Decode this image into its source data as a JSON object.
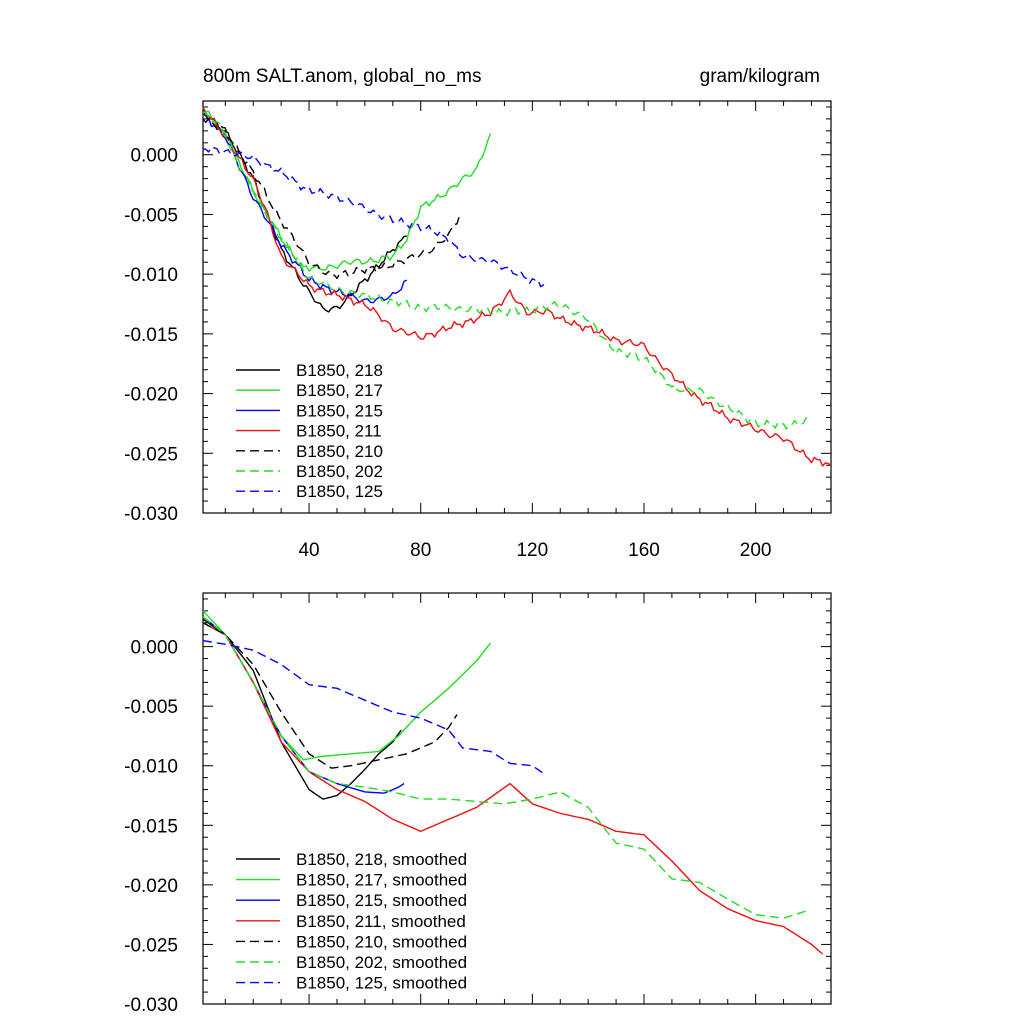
{
  "header": {
    "title_left": "800m SALT.anom, global_no_ms",
    "title_right": "gram/kilogram"
  },
  "chart_data": [
    {
      "type": "line",
      "title": "800m SALT.anom, global_no_ms",
      "units": "gram/kilogram",
      "xlim": [
        2,
        227
      ],
      "ylim": [
        -0.03,
        0.0045
      ],
      "xticks": [
        40,
        80,
        120,
        160,
        200
      ],
      "xtick_labels": [
        "40",
        "80",
        "120",
        "160",
        "200"
      ],
      "yticks": [
        0.0,
        -0.005,
        -0.01,
        -0.015,
        -0.02,
        -0.025,
        -0.03
      ],
      "ytick_labels": [
        "0.000",
        "-0.005",
        "-0.010",
        "-0.015",
        "-0.020",
        "-0.025",
        "-0.030"
      ],
      "legend_position": "lower-left",
      "series": [
        {
          "name": "B1850, 218",
          "color": "#000000",
          "dash": "solid",
          "noise": 0.0004,
          "points": [
            [
              2,
              0.0035
            ],
            [
              10,
              0.002
            ],
            [
              20,
              -0.002
            ],
            [
              30,
              -0.008
            ],
            [
              40,
              -0.0115
            ],
            [
              45,
              -0.013
            ],
            [
              50,
              -0.0128
            ],
            [
              55,
              -0.0118
            ],
            [
              60,
              -0.0105
            ],
            [
              65,
              -0.0092
            ],
            [
              70,
              -0.008
            ],
            [
              75,
              -0.0068
            ]
          ]
        },
        {
          "name": "B1850, 217",
          "color": "#22dd22",
          "dash": "solid",
          "noise": 0.0004,
          "points": [
            [
              2,
              0.004
            ],
            [
              10,
              0.0015
            ],
            [
              20,
              -0.003
            ],
            [
              30,
              -0.007
            ],
            [
              38,
              -0.0095
            ],
            [
              45,
              -0.0095
            ],
            [
              55,
              -0.009
            ],
            [
              65,
              -0.0088
            ],
            [
              70,
              -0.0085
            ],
            [
              75,
              -0.007
            ],
            [
              80,
              -0.0045
            ],
            [
              90,
              -0.003
            ],
            [
              100,
              -0.0012
            ],
            [
              105,
              0.0018
            ]
          ]
        },
        {
          "name": "B1850, 215",
          "color": "#0000ff",
          "dash": "solid",
          "noise": 0.0004,
          "points": [
            [
              2,
              0.0035
            ],
            [
              10,
              0.0015
            ],
            [
              20,
              -0.0035
            ],
            [
              30,
              -0.0075
            ],
            [
              40,
              -0.0105
            ],
            [
              50,
              -0.0115
            ],
            [
              60,
              -0.0122
            ],
            [
              65,
              -0.0122
            ],
            [
              70,
              -0.0118
            ],
            [
              75,
              -0.0105
            ]
          ]
        },
        {
          "name": "B1850, 211",
          "color": "#ee1111",
          "dash": "solid",
          "noise": 0.0004,
          "points": [
            [
              2,
              0.004
            ],
            [
              10,
              0.0015
            ],
            [
              20,
              -0.002
            ],
            [
              25,
              -0.005
            ],
            [
              30,
              -0.0085
            ],
            [
              40,
              -0.011
            ],
            [
              50,
              -0.0118
            ],
            [
              60,
              -0.0125
            ],
            [
              70,
              -0.0145
            ],
            [
              80,
              -0.0153
            ],
            [
              90,
              -0.0145
            ],
            [
              100,
              -0.0137
            ],
            [
              105,
              -0.0133
            ],
            [
              112,
              -0.0115
            ],
            [
              118,
              -0.0133
            ],
            [
              125,
              -0.013
            ],
            [
              130,
              -0.0138
            ],
            [
              140,
              -0.0145
            ],
            [
              150,
              -0.0155
            ],
            [
              160,
              -0.016
            ],
            [
              170,
              -0.0185
            ],
            [
              180,
              -0.0205
            ],
            [
              190,
              -0.022
            ],
            [
              200,
              -0.023
            ],
            [
              210,
              -0.0238
            ],
            [
              220,
              -0.0255
            ],
            [
              227,
              -0.026
            ]
          ]
        },
        {
          "name": "B1850, 210",
          "color": "#000000",
          "dash": "dashed",
          "noise": 0.0004,
          "points": [
            [
              2,
              0.003
            ],
            [
              10,
              0.002
            ],
            [
              20,
              -0.0015
            ],
            [
              30,
              -0.0055
            ],
            [
              40,
              -0.009
            ],
            [
              48,
              -0.0102
            ],
            [
              55,
              -0.0098
            ],
            [
              65,
              -0.0095
            ],
            [
              75,
              -0.0088
            ],
            [
              85,
              -0.0078
            ],
            [
              90,
              -0.0068
            ],
            [
              94,
              -0.005
            ]
          ]
        },
        {
          "name": "B1850, 202",
          "color": "#22dd22",
          "dash": "dashed",
          "noise": 0.0004,
          "points": [
            [
              2,
              0.0035
            ],
            [
              10,
              0.002
            ],
            [
              15,
              -0.001
            ],
            [
              20,
              -0.003
            ],
            [
              30,
              -0.007
            ],
            [
              40,
              -0.0103
            ],
            [
              50,
              -0.0113
            ],
            [
              60,
              -0.0118
            ],
            [
              70,
              -0.0123
            ],
            [
              80,
              -0.0128
            ],
            [
              90,
              -0.0128
            ],
            [
              100,
              -0.013
            ],
            [
              110,
              -0.0132
            ],
            [
              120,
              -0.013
            ],
            [
              130,
              -0.0125
            ],
            [
              140,
              -0.0138
            ],
            [
              150,
              -0.0165
            ],
            [
              160,
              -0.017
            ],
            [
              170,
              -0.0195
            ],
            [
              180,
              -0.0198
            ],
            [
              190,
              -0.0212
            ],
            [
              200,
              -0.0225
            ],
            [
              210,
              -0.0227
            ],
            [
              220,
              -0.0222
            ]
          ]
        },
        {
          "name": "B1850, 125",
          "color": "#0000ff",
          "dash": "dashed",
          "noise": 0.0004,
          "points": [
            [
              2,
              0.0005
            ],
            [
              10,
              0.0003
            ],
            [
              20,
              -0.0003
            ],
            [
              30,
              -0.0015
            ],
            [
              40,
              -0.003
            ],
            [
              50,
              -0.0035
            ],
            [
              60,
              -0.0045
            ],
            [
              70,
              -0.0055
            ],
            [
              80,
              -0.006
            ],
            [
              90,
              -0.007
            ],
            [
              95,
              -0.0085
            ],
            [
              100,
              -0.0088
            ],
            [
              105,
              -0.0088
            ],
            [
              110,
              -0.0095
            ],
            [
              115,
              -0.01
            ],
            [
              125,
              -0.011
            ]
          ]
        }
      ]
    },
    {
      "type": "line",
      "title": "",
      "xlim": [
        2,
        227
      ],
      "ylim": [
        -0.03,
        0.0045
      ],
      "xticks": [
        40,
        80,
        120,
        160,
        200
      ],
      "xtick_labels": [],
      "yticks": [
        0.0,
        -0.005,
        -0.01,
        -0.015,
        -0.02,
        -0.025,
        -0.03
      ],
      "ytick_labels": [
        "0.000",
        "-0.005",
        "-0.010",
        "-0.015",
        "-0.020",
        "-0.025",
        "-0.030"
      ],
      "legend_position": "lower-left",
      "series": [
        {
          "name": "B1850, 218, smoothed",
          "color": "#000000",
          "dash": "solid",
          "noise": 0,
          "points": [
            [
              2,
              0.0023
            ],
            [
              10,
              0.001
            ],
            [
              20,
              -0.002
            ],
            [
              30,
              -0.008
            ],
            [
              40,
              -0.012
            ],
            [
              45,
              -0.0128
            ],
            [
              50,
              -0.0125
            ],
            [
              55,
              -0.0115
            ],
            [
              60,
              -0.0103
            ],
            [
              65,
              -0.009
            ],
            [
              70,
              -0.008
            ],
            [
              73,
              -0.007
            ]
          ]
        },
        {
          "name": "B1850, 217, smoothed",
          "color": "#22dd22",
          "dash": "solid",
          "noise": 0,
          "points": [
            [
              2,
              0.003
            ],
            [
              10,
              0.001
            ],
            [
              20,
              -0.003
            ],
            [
              30,
              -0.0075
            ],
            [
              38,
              -0.0095
            ],
            [
              45,
              -0.0092
            ],
            [
              55,
              -0.009
            ],
            [
              65,
              -0.0088
            ],
            [
              72,
              -0.0075
            ],
            [
              80,
              -0.0055
            ],
            [
              90,
              -0.0035
            ],
            [
              100,
              -0.0012
            ],
            [
              105,
              0.0003
            ]
          ]
        },
        {
          "name": "B1850, 215, smoothed",
          "color": "#0000ff",
          "dash": "solid",
          "noise": 0,
          "points": [
            [
              2,
              0.0025
            ],
            [
              10,
              0.001
            ],
            [
              20,
              -0.003
            ],
            [
              30,
              -0.0075
            ],
            [
              40,
              -0.0105
            ],
            [
              50,
              -0.0115
            ],
            [
              60,
              -0.0122
            ],
            [
              67,
              -0.0123
            ],
            [
              72,
              -0.0118
            ],
            [
              74,
              -0.0115
            ]
          ]
        },
        {
          "name": "B1850, 211, smoothed",
          "color": "#ee1111",
          "dash": "solid",
          "noise": 0,
          "points": [
            [
              2,
              0.002
            ],
            [
              10,
              0.001
            ],
            [
              20,
              -0.003
            ],
            [
              30,
              -0.008
            ],
            [
              40,
              -0.0105
            ],
            [
              50,
              -0.012
            ],
            [
              60,
              -0.013
            ],
            [
              70,
              -0.0145
            ],
            [
              80,
              -0.0155
            ],
            [
              90,
              -0.0145
            ],
            [
              100,
              -0.0135
            ],
            [
              106,
              -0.0125
            ],
            [
              112,
              -0.0115
            ],
            [
              120,
              -0.0132
            ],
            [
              130,
              -0.014
            ],
            [
              140,
              -0.0145
            ],
            [
              150,
              -0.0155
            ],
            [
              160,
              -0.0158
            ],
            [
              170,
              -0.018
            ],
            [
              180,
              -0.0205
            ],
            [
              190,
              -0.022
            ],
            [
              200,
              -0.023
            ],
            [
              210,
              -0.0235
            ],
            [
              220,
              -0.025
            ],
            [
              224,
              -0.0258
            ]
          ]
        },
        {
          "name": "B1850, 210, smoothed",
          "color": "#000000",
          "dash": "dashed",
          "noise": 0,
          "points": [
            [
              2,
              0.002
            ],
            [
              10,
              0.001
            ],
            [
              20,
              -0.0015
            ],
            [
              30,
              -0.0055
            ],
            [
              40,
              -0.009
            ],
            [
              48,
              -0.0102
            ],
            [
              55,
              -0.01
            ],
            [
              65,
              -0.0095
            ],
            [
              75,
              -0.009
            ],
            [
              85,
              -0.008
            ],
            [
              90,
              -0.0068
            ],
            [
              93,
              -0.0057
            ]
          ]
        },
        {
          "name": "B1850, 202, smoothed",
          "color": "#22dd22",
          "dash": "dashed",
          "noise": 0,
          "points": [
            [
              2,
              0.0025
            ],
            [
              10,
              0.001
            ],
            [
              20,
              -0.003
            ],
            [
              30,
              -0.0075
            ],
            [
              40,
              -0.0105
            ],
            [
              50,
              -0.0115
            ],
            [
              60,
              -0.0118
            ],
            [
              70,
              -0.0122
            ],
            [
              80,
              -0.0128
            ],
            [
              90,
              -0.0128
            ],
            [
              100,
              -0.013
            ],
            [
              110,
              -0.0132
            ],
            [
              120,
              -0.0128
            ],
            [
              130,
              -0.0122
            ],
            [
              140,
              -0.0135
            ],
            [
              150,
              -0.0165
            ],
            [
              160,
              -0.017
            ],
            [
              170,
              -0.0195
            ],
            [
              180,
              -0.0198
            ],
            [
              190,
              -0.0212
            ],
            [
              200,
              -0.0225
            ],
            [
              210,
              -0.0228
            ],
            [
              218,
              -0.0222
            ]
          ]
        },
        {
          "name": "B1850, 125, smoothed",
          "color": "#0000ff",
          "dash": "dashed",
          "noise": 0,
          "points": [
            [
              2,
              0.0005
            ],
            [
              10,
              0.0002
            ],
            [
              20,
              -0.0003
            ],
            [
              30,
              -0.0015
            ],
            [
              40,
              -0.0032
            ],
            [
              50,
              -0.0035
            ],
            [
              60,
              -0.0045
            ],
            [
              70,
              -0.0055
            ],
            [
              80,
              -0.006
            ],
            [
              90,
              -0.007
            ],
            [
              95,
              -0.0085
            ],
            [
              105,
              -0.0088
            ],
            [
              112,
              -0.0098
            ],
            [
              120,
              -0.01
            ],
            [
              125,
              -0.0108
            ]
          ]
        }
      ]
    }
  ]
}
